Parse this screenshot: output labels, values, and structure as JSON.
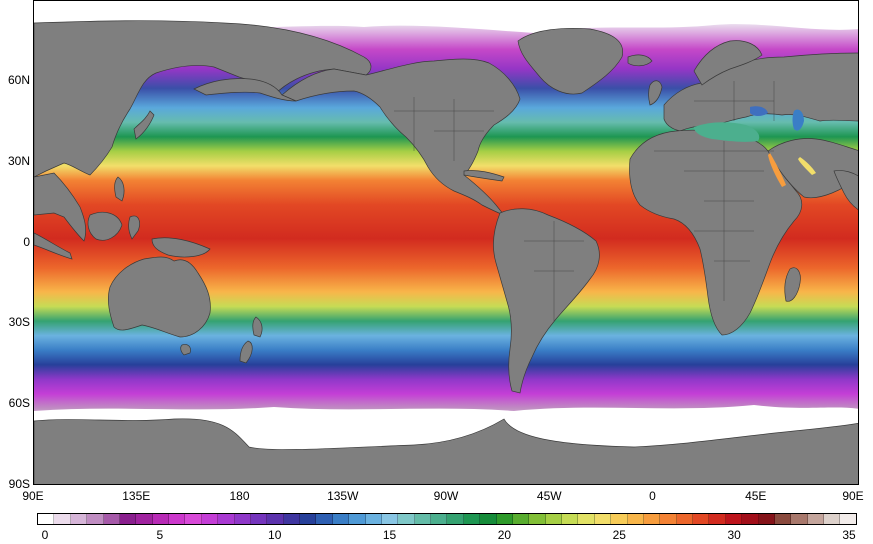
{
  "map": {
    "projection": "equirectangular",
    "lon_range": [
      90,
      450
    ],
    "lat_range": [
      -90,
      90
    ],
    "land_color": "#7f7f7f",
    "ice_color": "#ffffff"
  },
  "lat_ticks": [
    {
      "value": 60,
      "label": "60N"
    },
    {
      "value": 30,
      "label": "30N"
    },
    {
      "value": 0,
      "label": "0"
    },
    {
      "value": -30,
      "label": "30S"
    },
    {
      "value": -60,
      "label": "60S"
    },
    {
      "value": -90,
      "label": "90S"
    }
  ],
  "lon_ticks": [
    {
      "value": 90,
      "label": "90E"
    },
    {
      "value": 135,
      "label": "135E"
    },
    {
      "value": 180,
      "label": "180"
    },
    {
      "value": 225,
      "label": "135W"
    },
    {
      "value": 270,
      "label": "90W"
    },
    {
      "value": 315,
      "label": "45W"
    },
    {
      "value": 360,
      "label": "0"
    },
    {
      "value": 405,
      "label": "45E"
    },
    {
      "value": 450,
      "label": "90E"
    }
  ],
  "colorbar": {
    "min": 0,
    "max": 35,
    "tick_labels": [
      {
        "value": 0,
        "label": "0"
      },
      {
        "value": 5,
        "label": "5"
      },
      {
        "value": 10,
        "label": "10"
      },
      {
        "value": 15,
        "label": "15"
      },
      {
        "value": 20,
        "label": "20"
      },
      {
        "value": 25,
        "label": "25"
      },
      {
        "value": 30,
        "label": "30"
      },
      {
        "value": 35,
        "label": "35"
      }
    ],
    "colors": [
      "#ffffff",
      "#ecdcec",
      "#d6b5d8",
      "#c08dc2",
      "#a65aa9",
      "#8a1f8e",
      "#a0239f",
      "#b82bb6",
      "#cc38cc",
      "#d84ad8",
      "#c43ed6",
      "#a93ad2",
      "#8f38c9",
      "#7535bd",
      "#5c33ad",
      "#3f36a0",
      "#27409a",
      "#2e5fb2",
      "#3a7ec6",
      "#4f9ad6",
      "#6bb2e0",
      "#89c6e4",
      "#7fc8c8",
      "#64bca8",
      "#4caf8e",
      "#35a271",
      "#1e9652",
      "#168c3a",
      "#2e9a2a",
      "#59ad2f",
      "#82bf37",
      "#a6cf45",
      "#c6dc55",
      "#e2e266",
      "#f2de6a",
      "#f7cc58",
      "#f8b64a",
      "#f79d3e",
      "#f38234",
      "#ec662b",
      "#e24824",
      "#d22b1f",
      "#bd141c",
      "#a20f1a",
      "#85141a",
      "#8a4a3e",
      "#a8786c",
      "#c4a59c",
      "#ddd1cb",
      "#f2ecea"
    ]
  }
}
